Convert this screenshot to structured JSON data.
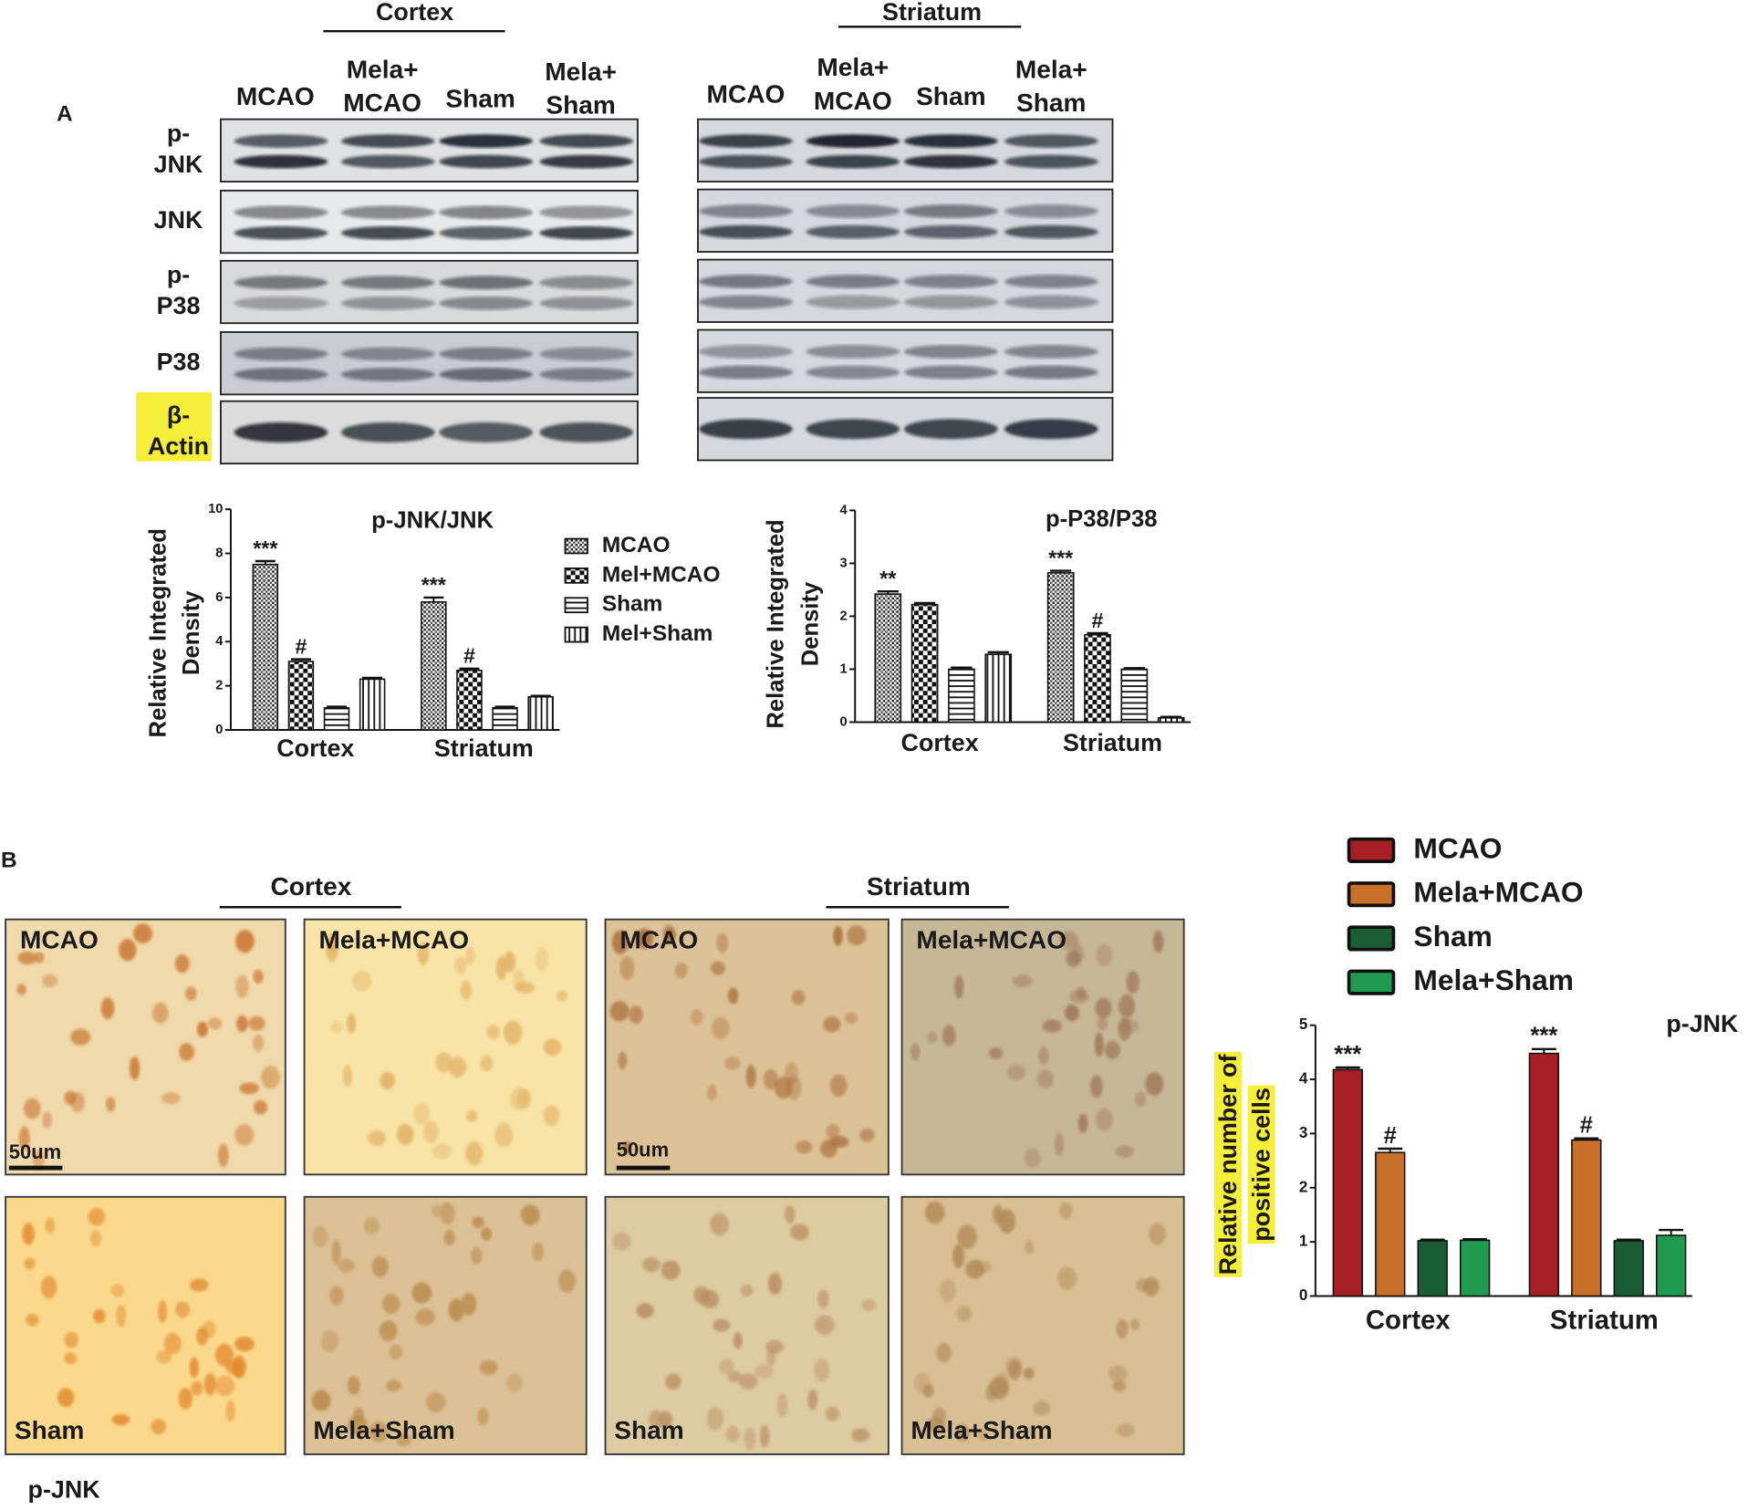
{
  "figure": {
    "panels": [
      "A",
      "B"
    ],
    "blot": {
      "regions": [
        "Cortex",
        "Striatum"
      ],
      "lanes": [
        [
          [
            "MCAO"
          ],
          [
            "Mela+",
            "MCAO"
          ],
          [
            "Sham"
          ],
          [
            "Mela+",
            "Sham"
          ]
        ],
        [
          [
            "MCAO"
          ],
          [
            "Mela+",
            "MCAO"
          ],
          [
            "Sham"
          ],
          [
            "Mela+",
            "Sham"
          ]
        ]
      ],
      "rows": [
        [
          "p-",
          "JNK"
        ],
        [
          "JNK"
        ],
        [
          "p-",
          "P38"
        ],
        [
          "P38"
        ],
        [
          "β-",
          "Actin"
        ]
      ]
    },
    "ihc": {
      "regions": [
        "Cortex",
        "Striatum"
      ],
      "images": [
        [
          "MCAO",
          "Mela+MCAO",
          "Sham",
          "Mela+Sham"
        ],
        [
          "MCAO",
          "Mela+MCAO",
          "Sham",
          "Mela+Sham"
        ]
      ],
      "scale_bars": [
        "50um",
        "50um"
      ],
      "marker": "p-JNK"
    }
  },
  "chart_data": [
    {
      "type": "bar",
      "title": "p-JNK/JNK",
      "ylabel": [
        "Relative Integrated",
        "Density"
      ],
      "categories": [
        "Cortex",
        "Striatum"
      ],
      "ylim": [
        0,
        10
      ],
      "yticks": [
        0,
        2,
        4,
        6,
        8,
        10
      ],
      "series": [
        {
          "name": "MCAO",
          "pattern": "crosshatch",
          "values": [
            7.5,
            5.8
          ],
          "errors": [
            0.15,
            0.2
          ],
          "annotations": [
            "***",
            "***"
          ]
        },
        {
          "name": "Mel+MCAO",
          "pattern": "checker",
          "values": [
            3.1,
            2.7
          ],
          "errors": [
            0.1,
            0.08
          ],
          "annotations": [
            "#",
            "#"
          ]
        },
        {
          "name": "Sham",
          "pattern": "horizontal",
          "values": [
            1.0,
            1.0
          ],
          "errors": [
            0.05,
            0.05
          ],
          "annotations": [
            null,
            null
          ]
        },
        {
          "name": "Mel+Sham",
          "pattern": "vertical",
          "values": [
            2.3,
            1.5
          ],
          "errors": [
            0.06,
            0.04
          ],
          "annotations": [
            null,
            null
          ]
        }
      ]
    },
    {
      "type": "bar",
      "title": "p-P38/P38",
      "ylabel": [
        "Relative Integrated",
        "Density"
      ],
      "categories": [
        "Cortex",
        "Striatum"
      ],
      "ylim": [
        0,
        4
      ],
      "yticks": [
        0,
        1,
        2,
        3,
        4
      ],
      "series": [
        {
          "pattern": "crosshatch",
          "values": [
            2.42,
            2.82
          ],
          "errors": [
            0.05,
            0.04
          ],
          "annotations": [
            "**",
            "***"
          ]
        },
        {
          "pattern": "checker",
          "values": [
            2.22,
            1.65
          ],
          "errors": [
            0.03,
            0.03
          ],
          "annotations": [
            null,
            "#"
          ]
        },
        {
          "pattern": "horizontal",
          "values": [
            1.0,
            1.0
          ],
          "errors": [
            0.03,
            0.02
          ],
          "annotations": [
            null,
            null
          ]
        },
        {
          "pattern": "vertical",
          "values": [
            1.28,
            0.08
          ],
          "errors": [
            0.04,
            0.02
          ],
          "annotations": [
            null,
            null
          ]
        }
      ]
    },
    {
      "type": "bar",
      "title": "p-JNK",
      "ylabel": [
        "Relative number of",
        "positive cells"
      ],
      "categories": [
        "Cortex",
        "Striatum"
      ],
      "ylim": [
        0,
        5
      ],
      "yticks": [
        0,
        1,
        2,
        3,
        4,
        5
      ],
      "series": [
        {
          "name": "MCAO",
          "color": "#a51f24",
          "values": [
            4.18,
            4.48
          ],
          "errors": [
            0.04,
            0.08
          ],
          "annotations": [
            "***",
            "***"
          ]
        },
        {
          "name": "Mela+MCAO",
          "color": "#c8702a",
          "values": [
            2.65,
            2.88
          ],
          "errors": [
            0.07,
            0.03
          ],
          "annotations": [
            "#",
            "#"
          ]
        },
        {
          "name": "Sham",
          "color": "#1a5c33",
          "values": [
            1.02,
            1.02
          ],
          "errors": [
            0.02,
            0.02
          ],
          "annotations": [
            null,
            null
          ]
        },
        {
          "name": "Mela+Sham",
          "color": "#1f9a4f",
          "values": [
            1.03,
            1.12
          ],
          "errors": [
            0.02,
            0.1
          ],
          "annotations": [
            null,
            null
          ]
        }
      ]
    }
  ]
}
